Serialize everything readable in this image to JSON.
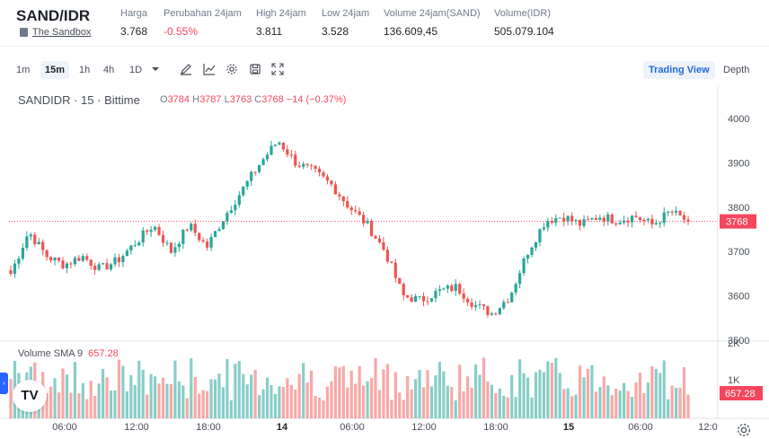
{
  "header": {
    "pair": "SAND/IDR",
    "coin_name": "The Sandbox",
    "stats": [
      {
        "label": "Harga",
        "value": "3.768",
        "negative": false
      },
      {
        "label": "Perubahan 24jam",
        "value": "-0.55%",
        "negative": true
      },
      {
        "label": "High 24jam",
        "value": "3.811",
        "negative": false
      },
      {
        "label": "Low 24jam",
        "value": "3.528",
        "negative": false
      },
      {
        "label": "Volume 24jam(SAND)",
        "value": "136.609,45",
        "negative": false
      },
      {
        "label": "Volume(IDR)",
        "value": "505.079.104",
        "negative": false
      }
    ]
  },
  "toolbar": {
    "intervals": [
      "1m",
      "15m",
      "1h",
      "4h",
      "1D"
    ],
    "active_interval": "15m",
    "icons": [
      "draw-icon",
      "indicators-icon",
      "settings-icon",
      "save-icon",
      "fullscreen-icon"
    ],
    "trading_view_label": "Trading View",
    "depth_label": "Depth"
  },
  "chart": {
    "symbol_line": "SANDIDR · 15 · Bittime",
    "ohlc": {
      "o": "3784",
      "h": "3787",
      "l": "3763",
      "c": "3768",
      "change": "−14 (−0.37%)"
    },
    "volume_legend": "Volume SMA 9",
    "volume_sma_value": "657.28",
    "last_price_label": "3768",
    "volume_badge": "657.28",
    "logo_text": "TV",
    "colors": {
      "up": "#26a69a",
      "down": "#ef5350",
      "price_line": "#f6465d"
    }
  },
  "chart_data": {
    "type": "candlestick",
    "y_ticks": [
      "4000",
      "3900",
      "3800",
      "3700",
      "3600",
      "3500"
    ],
    "ylim": [
      3500,
      4000
    ],
    "volume_ticks": [
      "2K",
      "1K"
    ],
    "x_ticks": [
      "06:00",
      "12:00",
      "18:00",
      "14",
      "06:00",
      "12:00",
      "18:00",
      "15",
      "06:00",
      "12:0"
    ],
    "last_price": 3768,
    "close_path": [
      3650,
      3745,
      3690,
      3670,
      3690,
      3660,
      3680,
      3720,
      3760,
      3700,
      3760,
      3710,
      3780,
      3840,
      3900,
      3950,
      3900,
      3880,
      3850,
      3800,
      3760,
      3700,
      3600,
      3590,
      3610,
      3620,
      3580,
      3560,
      3600,
      3700,
      3770,
      3780,
      3760,
      3780,
      3770,
      3780,
      3760,
      3790,
      3768
    ]
  }
}
